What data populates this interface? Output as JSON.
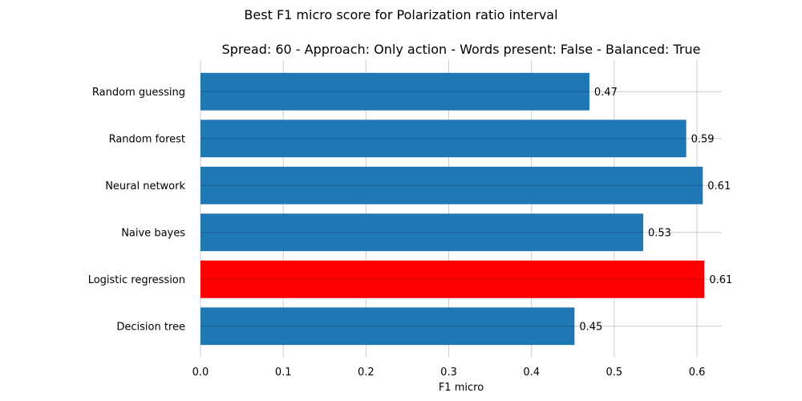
{
  "figure_title": "Best F1 micro score for Polarization ratio interval",
  "chart_data": {
    "type": "bar",
    "orientation": "horizontal",
    "title": "Spread: 60 - Approach: Only action - Words present: False - Balanced: True",
    "categories": [
      "Random guessing",
      "Random forest",
      "Neural network",
      "Naive bayes",
      "Logistic regression",
      "Decision tree"
    ],
    "values": [
      0.47,
      0.587,
      0.607,
      0.535,
      0.609,
      0.452
    ],
    "value_labels": [
      "0.47",
      "0.59",
      "0.61",
      "0.53",
      "0.61",
      "0.45"
    ],
    "bar_colors": [
      "#1f77b4",
      "#1f77b4",
      "#1f77b4",
      "#1f77b4",
      "#ff0000",
      "#1f77b4"
    ],
    "xlabel": "F1 micro",
    "ylabel": "",
    "xlim": [
      0,
      0.63
    ],
    "xticks": [
      0.0,
      0.1,
      0.2,
      0.3,
      0.4,
      0.5,
      0.6
    ],
    "xtick_labels": [
      "0.0",
      "0.1",
      "0.2",
      "0.3",
      "0.4",
      "0.5",
      "0.6"
    ],
    "grid": true,
    "legend": "none"
  }
}
